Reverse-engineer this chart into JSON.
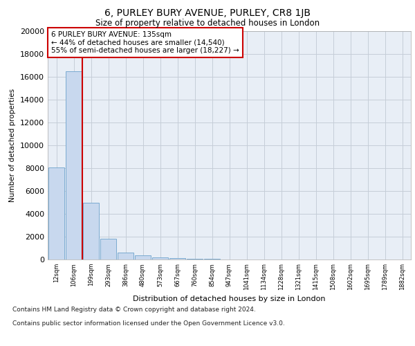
{
  "title": "6, PURLEY BURY AVENUE, PURLEY, CR8 1JB",
  "subtitle": "Size of property relative to detached houses in London",
  "xlabel": "Distribution of detached houses by size in London",
  "ylabel": "Number of detached properties",
  "bar_labels": [
    "12sqm",
    "106sqm",
    "199sqm",
    "293sqm",
    "386sqm",
    "480sqm",
    "573sqm",
    "667sqm",
    "760sqm",
    "854sqm",
    "947sqm",
    "1041sqm",
    "1134sqm",
    "1228sqm",
    "1321sqm",
    "1415sqm",
    "1508sqm",
    "1602sqm",
    "1695sqm",
    "1789sqm",
    "1882sqm"
  ],
  "bar_values": [
    8050,
    16500,
    5000,
    1800,
    600,
    380,
    190,
    110,
    60,
    40,
    20,
    15,
    10,
    8,
    5,
    3,
    2,
    2,
    1,
    1,
    1
  ],
  "bar_color": "#c8d8ee",
  "bar_edge_color": "#7aaad0",
  "ylim": [
    0,
    20000
  ],
  "yticks": [
    0,
    2000,
    4000,
    6000,
    8000,
    10000,
    12000,
    14000,
    16000,
    18000,
    20000
  ],
  "red_line_x": 1.5,
  "annotation_title": "6 PURLEY BURY AVENUE: 135sqm",
  "annotation_line1": "← 44% of detached houses are smaller (14,540)",
  "annotation_line2": "55% of semi-detached houses are larger (18,227) →",
  "annotation_box_color": "#ffffff",
  "annotation_box_edge": "#cc0000",
  "footnote1": "Contains HM Land Registry data © Crown copyright and database right 2024.",
  "footnote2": "Contains public sector information licensed under the Open Government Licence v3.0.",
  "plot_bg_color": "#e8eef6",
  "grid_color": "#c5cdd8"
}
